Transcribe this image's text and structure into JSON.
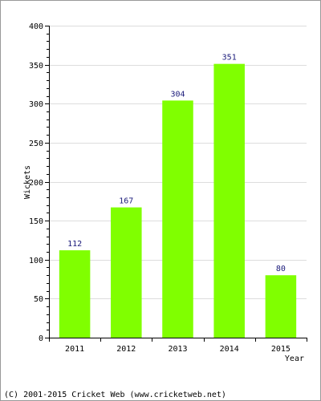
{
  "chart_data": {
    "type": "bar",
    "categories": [
      "2011",
      "2012",
      "2013",
      "2014",
      "2015"
    ],
    "values": [
      112,
      167,
      304,
      351,
      80
    ],
    "data_labels": [
      "112",
      "167",
      "304",
      "351",
      "80"
    ],
    "title": "",
    "xlabel": "Year",
    "ylabel": "Wickets",
    "ylim": [
      0,
      400
    ],
    "y_ticks": [
      0,
      50,
      100,
      150,
      200,
      250,
      300,
      350,
      400
    ],
    "y_tick_labels": [
      "0",
      "50",
      "100",
      "150",
      "200",
      "250",
      "300",
      "350",
      "400"
    ],
    "minor_tick_step": 10,
    "grid": true,
    "legend": "none",
    "bar_color": "#80ff00",
    "grid_color": "#dddddd",
    "data_label_color": "#1a1a7a"
  },
  "footer": {
    "text": "(C) 2001-2015 Cricket Web (www.cricketweb.net)"
  }
}
